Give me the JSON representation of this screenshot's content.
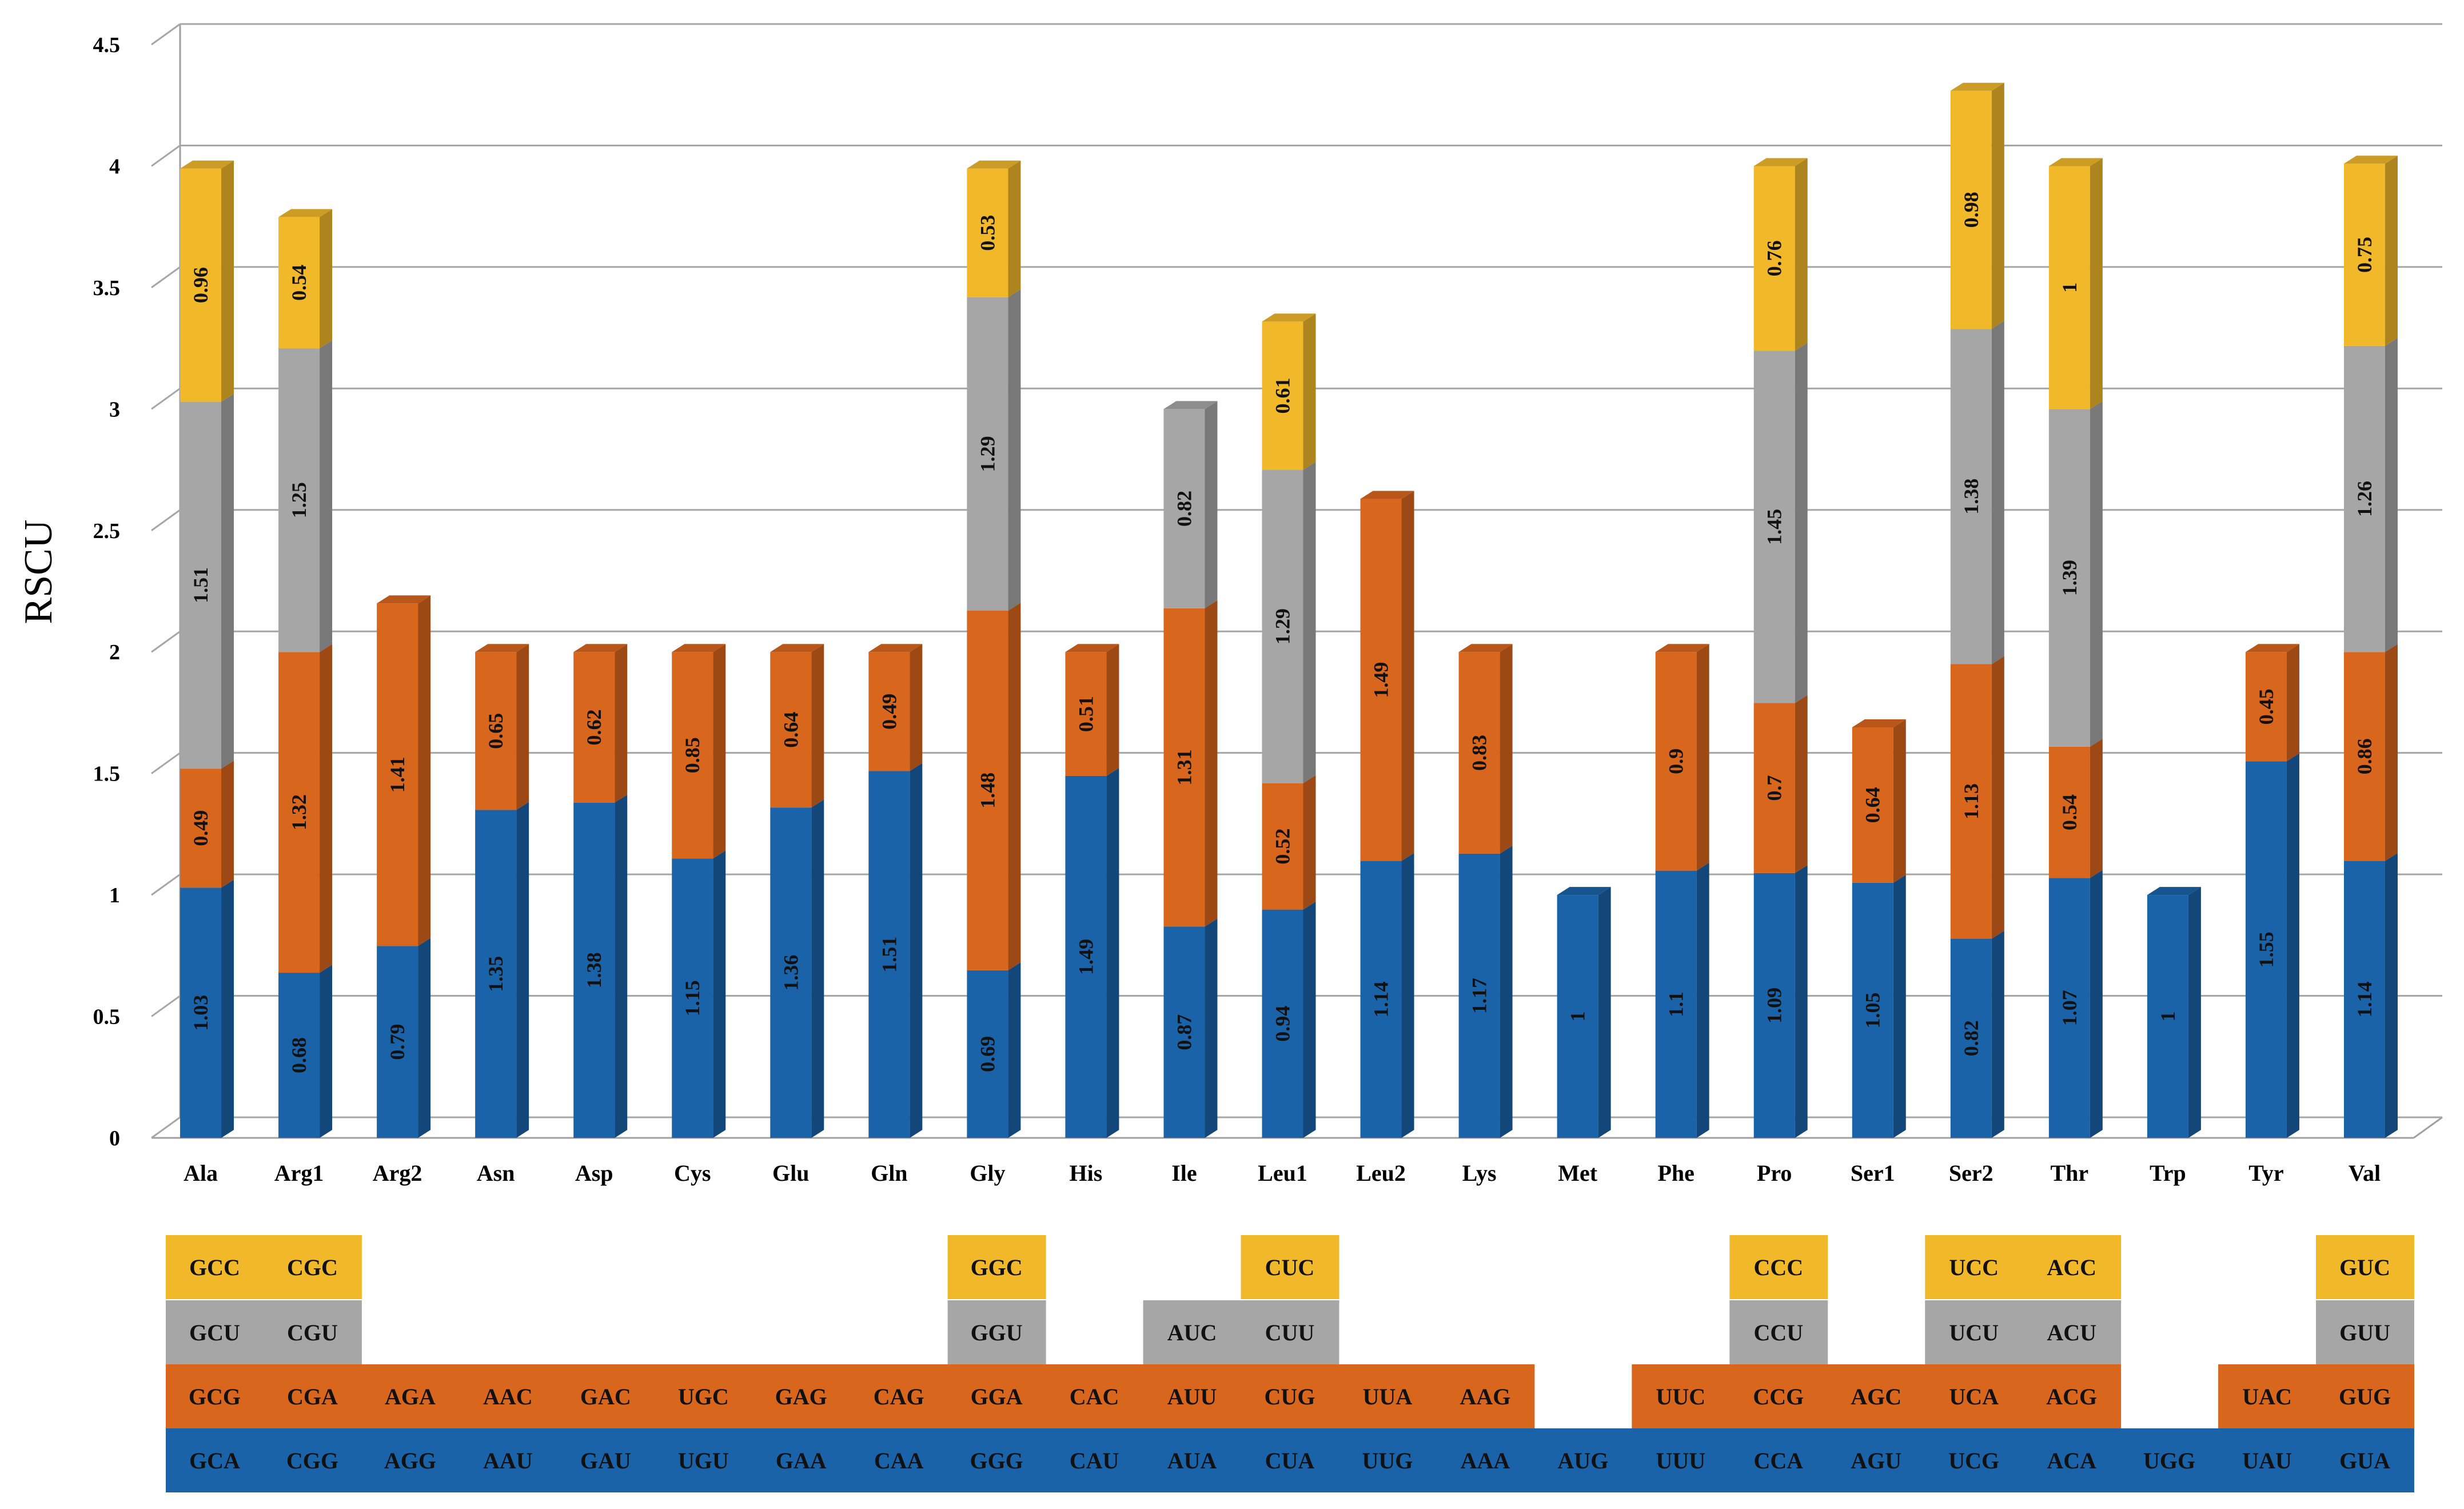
{
  "chart_data": {
    "type": "bar",
    "stacked": true,
    "ylabel": "RSCU",
    "xlabel": "",
    "ylim": [
      0,
      4.5
    ],
    "yticks": [
      "0",
      "0.5",
      "1",
      "1.5",
      "2",
      "2.5",
      "3",
      "3.5",
      "4",
      "4.5"
    ],
    "grid": true,
    "colors": [
      "#1a63a9",
      "#d8661d",
      "#a6a6a6",
      "#f1b82a"
    ],
    "categories": [
      "Ala",
      "Arg1",
      "Arg2",
      "Asn",
      "Asp",
      "Cys",
      "Glu",
      "Gln",
      "Gly",
      "His",
      "Ile",
      "Leu1",
      "Leu2",
      "Lys",
      "Met",
      "Phe",
      "Pro",
      "Ser1",
      "Ser2",
      "Thr",
      "Trp",
      "Tyr",
      "Val"
    ],
    "stacks": [
      {
        "values": [
          "1.03",
          "0.49",
          "1.51",
          "0.96"
        ],
        "codons": [
          "GCA",
          "GCG",
          "GCU",
          "GCC"
        ]
      },
      {
        "values": [
          "0.68",
          "1.32",
          "1.25",
          "0.54"
        ],
        "codons": [
          "CGG",
          "CGA",
          "CGU",
          "CGC"
        ]
      },
      {
        "values": [
          "0.79",
          "1.41"
        ],
        "codons": [
          "AGG",
          "AGA"
        ]
      },
      {
        "values": [
          "1.35",
          "0.65"
        ],
        "codons": [
          "AAU",
          "AAC"
        ]
      },
      {
        "values": [
          "1.38",
          "0.62"
        ],
        "codons": [
          "GAU",
          "GAC"
        ]
      },
      {
        "values": [
          "1.15",
          "0.85"
        ],
        "codons": [
          "UGU",
          "UGC"
        ]
      },
      {
        "values": [
          "1.36",
          "0.64"
        ],
        "codons": [
          "GAA",
          "GAG"
        ]
      },
      {
        "values": [
          "1.51",
          "0.49"
        ],
        "codons": [
          "CAA",
          "CAG"
        ]
      },
      {
        "values": [
          "0.69",
          "1.48",
          "1.29",
          "0.53"
        ],
        "codons": [
          "GGG",
          "GGA",
          "GGU",
          "GGC"
        ]
      },
      {
        "values": [
          "1.49",
          "0.51"
        ],
        "codons": [
          "CAU",
          "CAC"
        ]
      },
      {
        "values": [
          "0.87",
          "1.31",
          "0.82"
        ],
        "codons": [
          "AUA",
          "AUU",
          "AUC"
        ]
      },
      {
        "values": [
          "0.94",
          "0.52",
          "1.29",
          "0.61"
        ],
        "codons": [
          "CUA",
          "CUG",
          "CUU",
          "CUC"
        ]
      },
      {
        "values": [
          "1.14",
          "1.49"
        ],
        "codons": [
          "UUG",
          "UUA"
        ]
      },
      {
        "values": [
          "1.17",
          "0.83"
        ],
        "codons": [
          "AAA",
          "AAG"
        ]
      },
      {
        "values": [
          "1"
        ],
        "codons": [
          "AUG"
        ]
      },
      {
        "values": [
          "1.1",
          "0.9"
        ],
        "codons": [
          "UUU",
          "UUC"
        ]
      },
      {
        "values": [
          "1.09",
          "0.7",
          "1.45",
          "0.76"
        ],
        "codons": [
          "CCA",
          "CCG",
          "CCU",
          "CCC"
        ]
      },
      {
        "values": [
          "1.05",
          "0.64"
        ],
        "codons": [
          "AGU",
          "AGC"
        ]
      },
      {
        "values": [
          "0.82",
          "1.13",
          "1.38",
          "0.98"
        ],
        "codons": [
          "UCG",
          "UCA",
          "UCU",
          "UCC"
        ]
      },
      {
        "values": [
          "1.07",
          "0.54",
          "1.39",
          "1"
        ],
        "codons": [
          "ACA",
          "ACG",
          "ACU",
          "ACC"
        ]
      },
      {
        "values": [
          "1"
        ],
        "codons": [
          "UGG"
        ]
      },
      {
        "values": [
          "1.55",
          "0.45"
        ],
        "codons": [
          "UAU",
          "UAC"
        ]
      },
      {
        "values": [
          "1.14",
          "0.86",
          "1.26",
          "0.75"
        ],
        "codons": [
          "GUA",
          "GUG",
          "GUU",
          "GUC"
        ]
      }
    ]
  }
}
